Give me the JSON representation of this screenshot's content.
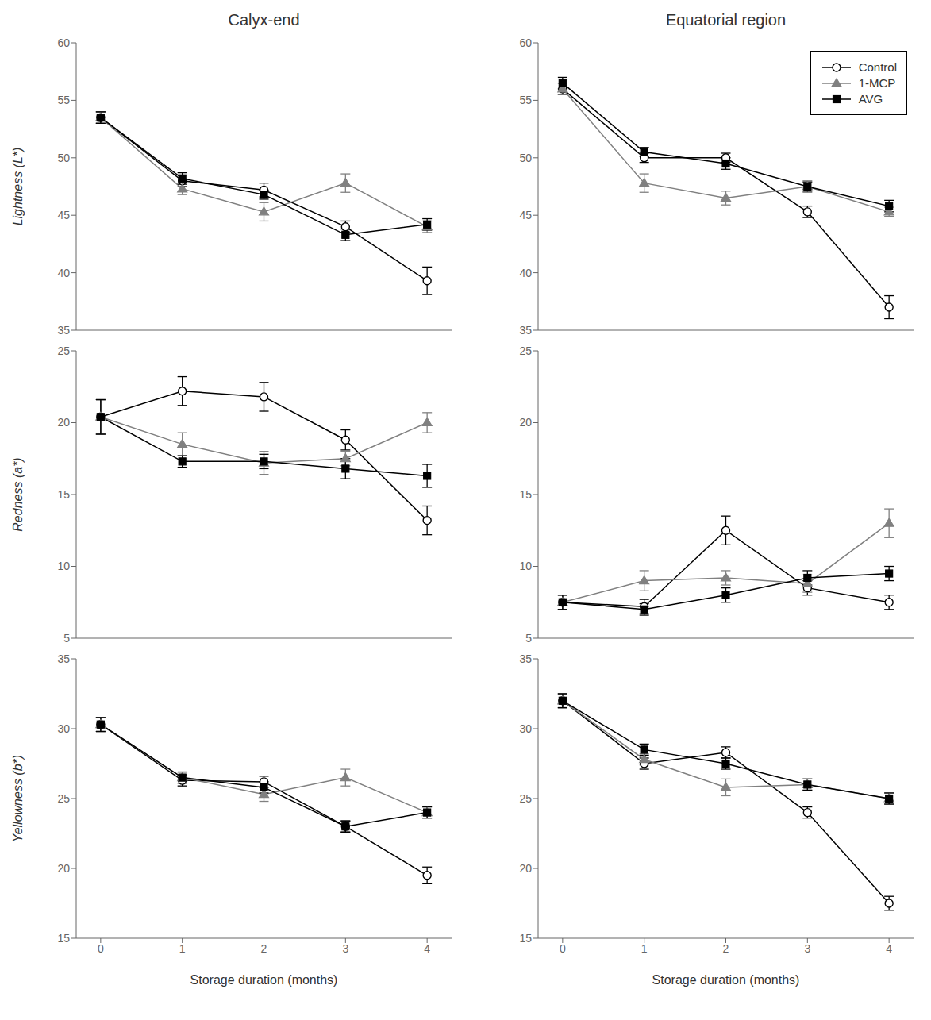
{
  "chart_data": [
    {
      "type": "line",
      "title": "Calyx-end",
      "y_label": "Lightness (L*)",
      "x": [
        0,
        1,
        2,
        3,
        4
      ],
      "xlim": [
        -0.3,
        4.3
      ],
      "xticks": [
        0,
        1,
        2,
        3,
        4
      ],
      "ylim": [
        35,
        60
      ],
      "yticks": [
        35,
        40,
        45,
        50,
        55,
        60
      ],
      "grid": false,
      "tick_labels": "y",
      "series": [
        {
          "name": "Control",
          "color": "#000000",
          "marker": "open_circle",
          "line_style": "solid",
          "values": [
            53.5,
            48.0,
            47.2,
            44.0,
            39.3
          ],
          "errors": [
            0.5,
            0.5,
            0.6,
            0.5,
            1.2
          ]
        },
        {
          "name": "1-MCP",
          "color": "#808080",
          "marker": "triangle",
          "line_style": "solid",
          "values": [
            53.5,
            47.3,
            45.3,
            47.8,
            44.0
          ],
          "errors": [
            0.5,
            0.5,
            0.8,
            0.8,
            0.5
          ]
        },
        {
          "name": "AVG",
          "color": "#000000",
          "marker": "square",
          "line_style": "solid",
          "values": [
            53.5,
            48.2,
            46.8,
            43.3,
            44.2
          ],
          "errors": [
            0.5,
            0.5,
            0.4,
            0.5,
            0.5
          ]
        }
      ]
    },
    {
      "type": "line",
      "title": "Equatorial region",
      "x": [
        0,
        1,
        2,
        3,
        4
      ],
      "xlim": [
        -0.3,
        4.3
      ],
      "xticks": [
        0,
        1,
        2,
        3,
        4
      ],
      "ylim": [
        35,
        60
      ],
      "yticks": [
        35,
        40,
        45,
        50,
        55,
        60
      ],
      "grid": false,
      "tick_labels": "y",
      "legend": "upper right",
      "series": [
        {
          "name": "Control",
          "color": "#000000",
          "marker": "open_circle",
          "line_style": "solid",
          "values": [
            56.0,
            50.0,
            50.0,
            45.3,
            37.0
          ],
          "errors": [
            0.5,
            0.4,
            0.4,
            0.5,
            1.0
          ]
        },
        {
          "name": "1-MCP",
          "color": "#808080",
          "marker": "triangle",
          "line_style": "solid",
          "values": [
            56.0,
            47.8,
            46.5,
            47.5,
            45.3
          ],
          "errors": [
            0.5,
            0.8,
            0.6,
            0.5,
            0.4
          ]
        },
        {
          "name": "AVG",
          "color": "#000000",
          "marker": "square",
          "line_style": "solid",
          "values": [
            56.5,
            50.5,
            49.5,
            47.5,
            45.8
          ],
          "errors": [
            0.5,
            0.4,
            0.5,
            0.4,
            0.5
          ]
        }
      ]
    },
    {
      "type": "line",
      "y_label": "Redness (a*)",
      "x": [
        0,
        1,
        2,
        3,
        4
      ],
      "xlim": [
        -0.3,
        4.3
      ],
      "xticks": [
        0,
        1,
        2,
        3,
        4
      ],
      "ylim": [
        5,
        25
      ],
      "yticks": [
        5,
        10,
        15,
        20,
        25
      ],
      "grid": false,
      "tick_labels": "y",
      "series": [
        {
          "name": "Control",
          "color": "#000000",
          "marker": "open_circle",
          "line_style": "solid",
          "values": [
            20.4,
            22.2,
            21.8,
            18.8,
            13.2
          ],
          "errors": [
            1.2,
            1.0,
            1.0,
            0.7,
            1.0
          ]
        },
        {
          "name": "1-MCP",
          "color": "#808080",
          "marker": "triangle",
          "line_style": "solid",
          "values": [
            20.4,
            18.5,
            17.2,
            17.5,
            20.0
          ],
          "errors": [
            1.2,
            0.8,
            0.8,
            0.5,
            0.7
          ]
        },
        {
          "name": "AVG",
          "color": "#000000",
          "marker": "square",
          "line_style": "solid",
          "values": [
            20.4,
            17.3,
            17.3,
            16.8,
            16.3
          ],
          "errors": [
            1.2,
            0.4,
            0.5,
            0.7,
            0.8
          ]
        }
      ]
    },
    {
      "type": "line",
      "x": [
        0,
        1,
        2,
        3,
        4
      ],
      "xlim": [
        -0.3,
        4.3
      ],
      "xticks": [
        0,
        1,
        2,
        3,
        4
      ],
      "ylim": [
        5,
        25
      ],
      "yticks": [
        5,
        10,
        15,
        20,
        25
      ],
      "grid": false,
      "tick_labels": "y",
      "series": [
        {
          "name": "Control",
          "color": "#000000",
          "marker": "open_circle",
          "line_style": "solid",
          "values": [
            7.5,
            7.2,
            12.5,
            8.5,
            7.5
          ],
          "errors": [
            0.5,
            0.5,
            1.0,
            0.5,
            0.5
          ]
        },
        {
          "name": "1-MCP",
          "color": "#808080",
          "marker": "triangle",
          "line_style": "solid",
          "values": [
            7.5,
            9.0,
            9.2,
            8.8,
            13.0
          ],
          "errors": [
            0.5,
            0.7,
            0.5,
            0.6,
            1.0
          ]
        },
        {
          "name": "AVG",
          "color": "#000000",
          "marker": "square",
          "line_style": "solid",
          "values": [
            7.5,
            7.0,
            8.0,
            9.2,
            9.5
          ],
          "errors": [
            0.5,
            0.4,
            0.5,
            0.5,
            0.5
          ]
        }
      ]
    },
    {
      "type": "line",
      "y_label": "Yellowness (b*)",
      "x_label": "Storage duration (months)",
      "x": [
        0,
        1,
        2,
        3,
        4
      ],
      "xlim": [
        -0.3,
        4.3
      ],
      "xticks": [
        0,
        1,
        2,
        3,
        4
      ],
      "ylim": [
        15,
        35
      ],
      "yticks": [
        15,
        20,
        25,
        30,
        35
      ],
      "grid": false,
      "series": [
        {
          "name": "Control",
          "color": "#000000",
          "marker": "open_circle",
          "line_style": "solid",
          "values": [
            30.3,
            26.3,
            26.2,
            23.0,
            19.5
          ],
          "errors": [
            0.5,
            0.4,
            0.4,
            0.4,
            0.6
          ]
        },
        {
          "name": "1-MCP",
          "color": "#808080",
          "marker": "triangle",
          "line_style": "solid",
          "values": [
            30.3,
            26.5,
            25.3,
            26.5,
            24.0
          ],
          "errors": [
            0.5,
            0.4,
            0.5,
            0.6,
            0.4
          ]
        },
        {
          "name": "AVG",
          "color": "#000000",
          "marker": "square",
          "line_style": "solid",
          "values": [
            30.3,
            26.5,
            25.8,
            23.0,
            24.0
          ],
          "errors": [
            0.5,
            0.4,
            0.4,
            0.4,
            0.4
          ]
        }
      ]
    },
    {
      "type": "line",
      "x_label": "Storage duration (months)",
      "x": [
        0,
        1,
        2,
        3,
        4
      ],
      "xlim": [
        -0.3,
        4.3
      ],
      "xticks": [
        0,
        1,
        2,
        3,
        4
      ],
      "ylim": [
        15,
        35
      ],
      "yticks": [
        15,
        20,
        25,
        30,
        35
      ],
      "grid": false,
      "series": [
        {
          "name": "Control",
          "color": "#000000",
          "marker": "open_circle",
          "line_style": "solid",
          "values": [
            32.0,
            27.5,
            28.3,
            24.0,
            17.5
          ],
          "errors": [
            0.5,
            0.4,
            0.4,
            0.4,
            0.5
          ]
        },
        {
          "name": "1-MCP",
          "color": "#808080",
          "marker": "triangle",
          "line_style": "solid",
          "values": [
            32.0,
            27.8,
            25.8,
            26.0,
            25.0
          ],
          "errors": [
            0.5,
            0.4,
            0.6,
            0.4,
            0.4
          ]
        },
        {
          "name": "AVG",
          "color": "#000000",
          "marker": "square",
          "line_style": "solid",
          "values": [
            32.0,
            28.5,
            27.5,
            26.0,
            25.0
          ],
          "errors": [
            0.5,
            0.4,
            0.4,
            0.4,
            0.4
          ]
        }
      ]
    }
  ]
}
